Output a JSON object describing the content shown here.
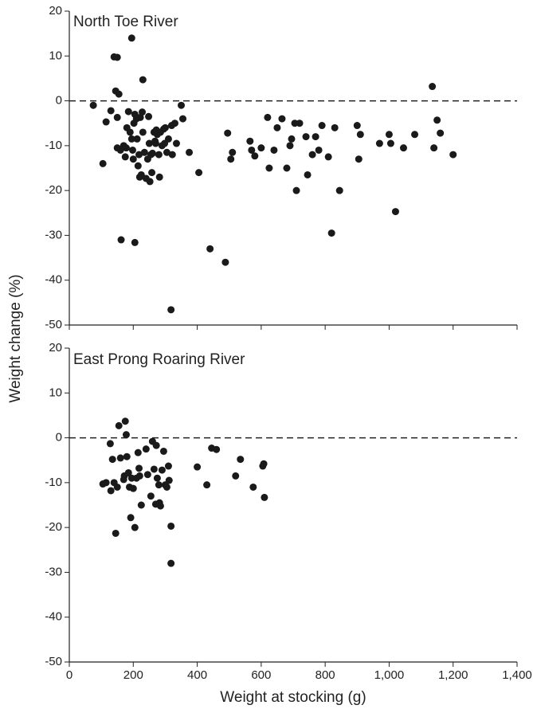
{
  "chart_data": [
    {
      "type": "scatter",
      "title": "North Toe River",
      "ylabel": "Weight change (%)",
      "color": "#1a1a1a",
      "xlim": [
        0,
        1400
      ],
      "ylim": [
        -50,
        20
      ],
      "yticks": [
        20,
        10,
        0,
        -10,
        -20,
        -30,
        -40,
        -50
      ],
      "hline": 0,
      "x": [
        75,
        105,
        115,
        130,
        140,
        150,
        145,
        150,
        155,
        150,
        160,
        162,
        170,
        175,
        178,
        180,
        185,
        190,
        195,
        195,
        198,
        200,
        202,
        205,
        205,
        210,
        212,
        215,
        218,
        220,
        222,
        225,
        228,
        230,
        230,
        235,
        240,
        245,
        248,
        250,
        252,
        255,
        258,
        260,
        265,
        268,
        270,
        272,
        275,
        280,
        282,
        285,
        290,
        295,
        298,
        300,
        305,
        310,
        318,
        320,
        322,
        330,
        335,
        350,
        355,
        375,
        405,
        440,
        488,
        495,
        505,
        510,
        565,
        570,
        580,
        600,
        620,
        625,
        640,
        650,
        665,
        680,
        690,
        695,
        705,
        710,
        720,
        745,
        740,
        760,
        770,
        780,
        790,
        810,
        820,
        830,
        845,
        900,
        905,
        910,
        970,
        1000,
        1005,
        1020,
        1045,
        1080,
        1135,
        1140,
        1150,
        1160,
        1200
      ],
      "values": [
        -1,
        -14,
        -4.7,
        -2.2,
        9.8,
        9.7,
        2.2,
        -3.7,
        1.5,
        -10.5,
        -11,
        -31,
        -10,
        -12.5,
        -10.5,
        -6,
        -2.4,
        -7,
        14,
        -8.5,
        -11,
        -13,
        -5,
        -3,
        -31.6,
        -4,
        -8.5,
        -14.5,
        -12,
        -17,
        -3.7,
        -16.5,
        -2.5,
        -7,
        4.7,
        -11.5,
        -17.3,
        -13,
        -3.5,
        -9.5,
        -18,
        -12,
        -16,
        -11.7,
        -7,
        -9,
        -9.5,
        -6.5,
        -7.5,
        -12,
        -17,
        -7,
        -10,
        -6.3,
        -9.5,
        -6,
        -11.5,
        -8.5,
        -46.6,
        -5.5,
        -12,
        -5,
        -9.5,
        -1,
        -4,
        -11.5,
        -16,
        -33,
        -36,
        -7.2,
        -13,
        -11.5,
        -9,
        -11,
        -12.3,
        -10.5,
        -3.7,
        -15,
        -11,
        -6,
        -4,
        -15,
        -10,
        -8.5,
        -5,
        -20,
        -5,
        -16.5,
        -8,
        -12,
        -8,
        -11,
        -5.5,
        -12.5,
        -29.5,
        -6,
        -20,
        -5.5,
        -13,
        -7.5,
        -9.5,
        -7.5,
        -9.5,
        -24.7,
        -10.5,
        -7.5,
        3.2,
        -10.5,
        -4.3,
        -7.2,
        -12
      ]
    },
    {
      "type": "scatter",
      "title": "East Prong Roaring River",
      "xlabel": "Weight at stocking (g)",
      "color": "#1a1a1a",
      "xlim": [
        0,
        1400
      ],
      "ylim": [
        -50,
        20
      ],
      "yticks": [
        20,
        10,
        0,
        -10,
        -20,
        -30,
        -40,
        -50
      ],
      "hline": 0,
      "xticks": [
        0,
        200,
        400,
        600,
        800,
        {
          "value": 1000,
          "label": "1,000"
        },
        {
          "value": 1200,
          "label": "1,200"
        },
        {
          "value": 1400,
          "label": "1,400"
        }
      ],
      "x": [
        105,
        115,
        128,
        130,
        135,
        140,
        145,
        150,
        155,
        160,
        170,
        172,
        175,
        178,
        180,
        185,
        188,
        192,
        195,
        200,
        205,
        210,
        215,
        218,
        220,
        225,
        240,
        245,
        255,
        260,
        265,
        270,
        272,
        275,
        280,
        282,
        285,
        290,
        295,
        300,
        305,
        310,
        312,
        318,
        318,
        400,
        430,
        445,
        460,
        520,
        535,
        575,
        605,
        608,
        610
      ],
      "values": [
        -10.3,
        -10,
        -1.3,
        -11.8,
        -4.8,
        -10,
        -21.3,
        -11,
        2.7,
        -4.5,
        -9.3,
        -8.5,
        3.7,
        0.7,
        -4.2,
        -7.8,
        -11,
        -17.8,
        -9,
        -11.3,
        -20,
        -9,
        -3.3,
        -6.8,
        -8.5,
        -15,
        -2.5,
        -8.2,
        -13,
        -0.8,
        -7,
        -14.8,
        -1.7,
        -9,
        -10.5,
        -14.5,
        -15.2,
        -7.2,
        -3,
        -10.5,
        -11,
        -6.3,
        -9.5,
        -19.7,
        -28,
        -6.5,
        -10.5,
        -2.3,
        -2.6,
        -8.5,
        -4.8,
        -11,
        -6.3,
        -5.8,
        -13.3
      ]
    }
  ]
}
